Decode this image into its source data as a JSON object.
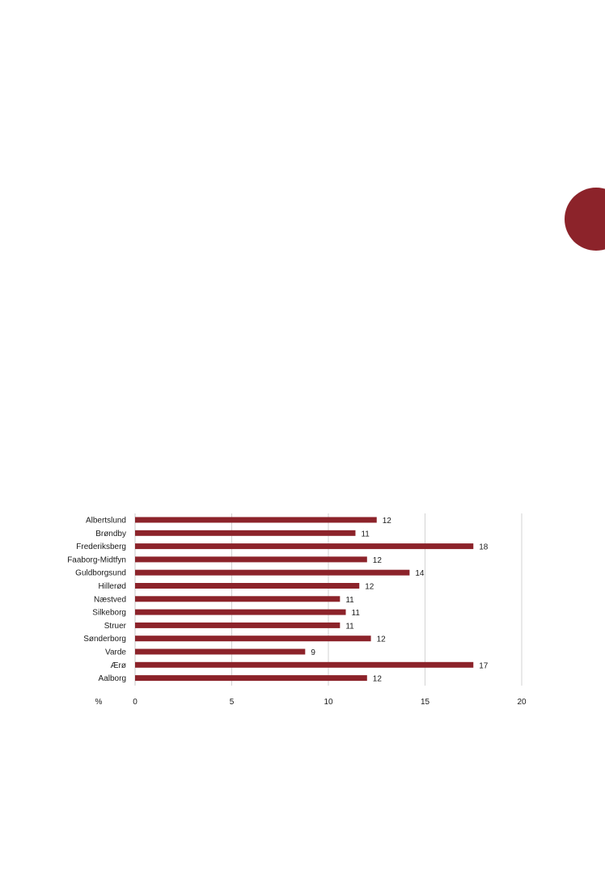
{
  "colors": {
    "bar": "#8c232a",
    "accent_circle": "#8c232a",
    "grid": "#c8c8c8",
    "text": "#1a1a1a"
  },
  "chart_data": {
    "type": "bar",
    "orientation": "horizontal",
    "categories": [
      "Albertslund",
      "Brøndby",
      "Frederiksberg",
      "Faaborg-Midtfyn",
      "Guldborgsund",
      "Hillerød",
      "Næstved",
      "Silkeborg",
      "Struer",
      "Sønderborg",
      "Varde",
      "Ærø",
      "Aalborg"
    ],
    "values": [
      12.5,
      11.4,
      17.5,
      12.0,
      14.2,
      11.6,
      10.6,
      10.9,
      10.6,
      12.2,
      8.8,
      17.5,
      12.0
    ],
    "data_labels": [
      "12",
      "11",
      "18",
      "12",
      "14",
      "12",
      "11",
      "11",
      "11",
      "12",
      "9",
      "17",
      "12"
    ],
    "xlim": [
      0,
      20
    ],
    "xticks": [
      "0",
      "5",
      "10",
      "15",
      "20"
    ],
    "unit_label": "%",
    "grid": "vertical"
  }
}
